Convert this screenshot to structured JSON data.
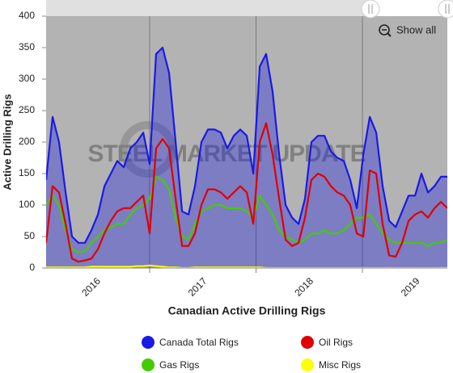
{
  "chart_data": {
    "type": "line",
    "xlabel": "Canadian Active Drilling Rigs",
    "ylabel": "Active Drilling Rigs",
    "watermark": "STEEL MARKET UPDATE",
    "zoom_button": "Show all",
    "xlim": [
      2016.027,
      2019.798
    ],
    "xticks": [
      2016,
      2017,
      2018,
      2019
    ],
    "ylim": [
      0,
      400
    ],
    "yticks": [
      0,
      50,
      100,
      150,
      200,
      250,
      300,
      350,
      400
    ],
    "grid": "x",
    "legend": "bottom",
    "x": [
      2016.027,
      2016.088,
      2016.149,
      2016.21,
      2016.27,
      2016.331,
      2016.392,
      2016.453,
      2016.514,
      2016.575,
      2016.635,
      2016.696,
      2016.757,
      2016.818,
      2016.879,
      2016.94,
      2017.0,
      2017.061,
      2017.122,
      2017.183,
      2017.244,
      2017.305,
      2017.365,
      2017.426,
      2017.487,
      2017.548,
      2017.609,
      2017.67,
      2017.73,
      2017.791,
      2017.852,
      2017.913,
      2017.974,
      2018.035,
      2018.095,
      2018.156,
      2018.217,
      2018.278,
      2018.339,
      2018.4,
      2018.46,
      2018.521,
      2018.582,
      2018.643,
      2018.704,
      2018.765,
      2018.825,
      2018.886,
      2018.947,
      2019.008,
      2019.069,
      2019.13,
      2019.19,
      2019.251,
      2019.312,
      2019.373,
      2019.434,
      2019.495,
      2019.555,
      2019.616,
      2019.677,
      2019.738,
      2019.798
    ],
    "series": [
      {
        "name": "Canada Total Rigs",
        "color": "#1a1ae6",
        "area": true,
        "values": [
          140,
          240,
          200,
          120,
          50,
          40,
          40,
          60,
          85,
          130,
          150,
          170,
          160,
          190,
          200,
          215,
          165,
          340,
          350,
          310,
          200,
          90,
          85,
          130,
          200,
          220,
          220,
          215,
          190,
          210,
          220,
          210,
          150,
          320,
          340,
          280,
          180,
          100,
          80,
          70,
          110,
          200,
          210,
          210,
          185,
          175,
          170,
          140,
          95,
          180,
          240,
          215,
          130,
          75,
          65,
          90,
          115,
          115,
          150,
          120,
          130,
          145,
          145
        ]
      },
      {
        "name": "Oil Rigs",
        "color": "#e00000",
        "values": [
          40,
          130,
          120,
          70,
          15,
          10,
          12,
          15,
          30,
          55,
          75,
          90,
          95,
          95,
          105,
          115,
          55,
          190,
          205,
          190,
          110,
          35,
          35,
          55,
          100,
          125,
          125,
          120,
          110,
          120,
          130,
          120,
          70,
          200,
          230,
          180,
          110,
          45,
          35,
          40,
          80,
          140,
          150,
          145,
          130,
          120,
          115,
          100,
          55,
          50,
          155,
          150,
          70,
          20,
          18,
          40,
          75,
          85,
          90,
          80,
          95,
          105,
          95
        ]
      },
      {
        "name": "Gas Rigs",
        "color": "#44cc00",
        "values": [
          100,
          115,
          100,
          60,
          30,
          25,
          27,
          40,
          50,
          60,
          65,
          70,
          70,
          85,
          95,
          100,
          110,
          145,
          140,
          125,
          80,
          50,
          45,
          70,
          90,
          95,
          100,
          100,
          95,
          95,
          95,
          90,
          80,
          115,
          100,
          85,
          60,
          50,
          45,
          40,
          45,
          55,
          55,
          60,
          55,
          55,
          60,
          70,
          80,
          80,
          85,
          70,
          55,
          45,
          40,
          40,
          40,
          40,
          40,
          35,
          40,
          40,
          45
        ]
      },
      {
        "name": "Misc Rigs",
        "color": "#ffff00",
        "values": [
          1,
          1,
          1,
          1,
          1,
          1,
          1,
          2,
          2,
          2,
          2,
          2,
          2,
          2,
          3,
          3,
          4,
          3,
          2,
          1,
          1,
          0,
          0,
          1,
          1,
          1,
          1,
          1,
          1,
          1,
          1,
          1,
          1,
          1,
          0,
          0,
          0,
          0,
          0,
          0,
          0,
          0,
          0,
          0,
          0,
          0,
          0,
          0,
          0,
          0,
          0,
          0,
          0,
          0,
          0,
          0,
          0,
          0,
          0,
          0,
          0,
          0,
          0
        ]
      }
    ]
  }
}
